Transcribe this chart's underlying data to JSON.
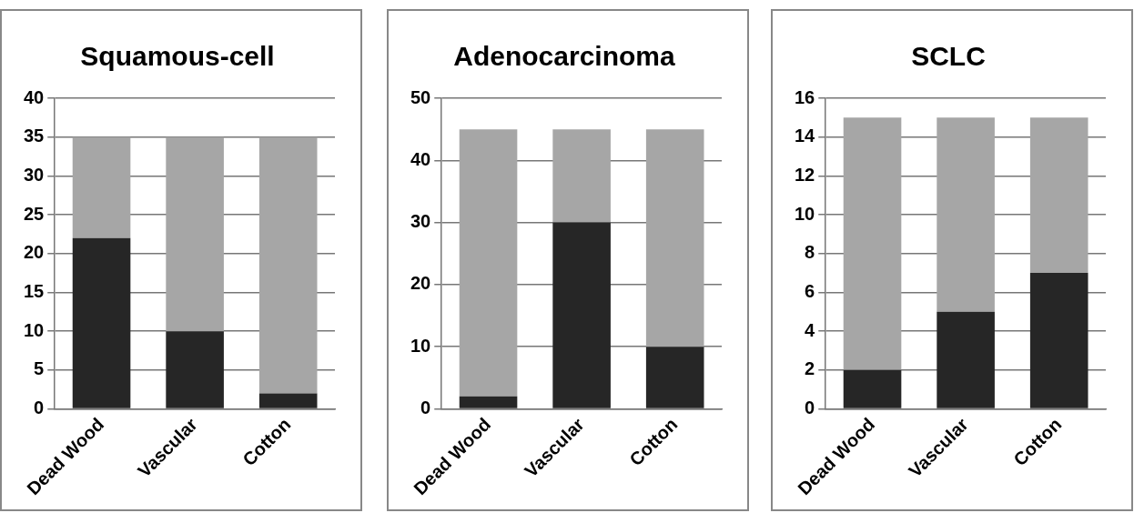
{
  "chart_data": [
    {
      "type": "bar",
      "title": "Squamous-cell",
      "categories": [
        "Dead Wood",
        "Vascular",
        "Cotton"
      ],
      "stacked": true,
      "series": [
        {
          "color": "#262626",
          "values": [
            22,
            10,
            2
          ]
        },
        {
          "color": "#a6a6a6",
          "values": [
            13,
            25,
            33
          ]
        }
      ],
      "ylim": [
        0,
        40
      ],
      "yticks": [
        0,
        5,
        10,
        15,
        20,
        25,
        30,
        35,
        40
      ],
      "grid": "y",
      "legend": false
    },
    {
      "type": "bar",
      "title": "Adenocarcinoma",
      "categories": [
        "Dead Wood",
        "Vascular",
        "Cotton"
      ],
      "stacked": true,
      "series": [
        {
          "color": "#262626",
          "values": [
            2,
            30,
            10
          ]
        },
        {
          "color": "#a6a6a6",
          "values": [
            43,
            15,
            35
          ]
        }
      ],
      "ylim": [
        0,
        50
      ],
      "yticks": [
        0,
        10,
        20,
        30,
        40,
        50
      ],
      "grid": "y",
      "legend": false
    },
    {
      "type": "bar",
      "title": "SCLC",
      "categories": [
        "Dead Wood",
        "Vascular",
        "Cotton"
      ],
      "stacked": true,
      "series": [
        {
          "color": "#262626",
          "values": [
            2,
            5,
            7
          ]
        },
        {
          "color": "#a6a6a6",
          "values": [
            13,
            10,
            8
          ]
        }
      ],
      "ylim": [
        0,
        16
      ],
      "yticks": [
        0,
        2,
        4,
        6,
        8,
        10,
        12,
        14,
        16
      ],
      "grid": "y",
      "legend": false
    }
  ]
}
